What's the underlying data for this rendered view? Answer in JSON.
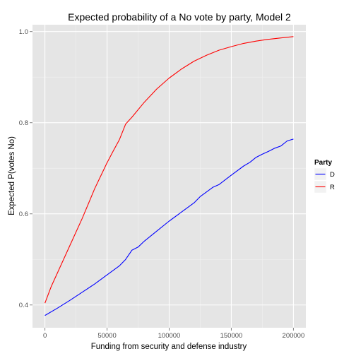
{
  "chart_data": {
    "type": "line",
    "title": "Expected probability of a No vote by party, Model 2",
    "xlabel": "Funding from security and defense industry",
    "ylabel": "Expected P(votes No)",
    "xlim": [
      -10000,
      210000
    ],
    "ylim": [
      0.35,
      1.015
    ],
    "x_ticks": [
      0,
      50000,
      100000,
      150000,
      200000
    ],
    "x_tick_labels": [
      "0",
      "50000",
      "100000",
      "150000",
      "200000"
    ],
    "y_ticks": [
      0.4,
      0.6,
      0.8,
      1.0
    ],
    "y_tick_labels": [
      "0.4",
      "0.6",
      "0.8",
      "1.0"
    ],
    "grid": true,
    "legend": {
      "title": "Party",
      "position": "right"
    },
    "series": [
      {
        "name": "D",
        "color": "#0000ff",
        "points": [
          [
            0,
            0.377
          ],
          [
            10000,
            0.393
          ],
          [
            20000,
            0.41
          ],
          [
            30000,
            0.428
          ],
          [
            40000,
            0.446
          ],
          [
            50000,
            0.466
          ],
          [
            60000,
            0.486
          ],
          [
            65000,
            0.5
          ],
          [
            70000,
            0.52
          ],
          [
            75000,
            0.527
          ],
          [
            80000,
            0.54
          ],
          [
            90000,
            0.562
          ],
          [
            100000,
            0.584
          ],
          [
            110000,
            0.604
          ],
          [
            120000,
            0.624
          ],
          [
            125000,
            0.638
          ],
          [
            130000,
            0.648
          ],
          [
            135000,
            0.658
          ],
          [
            140000,
            0.664
          ],
          [
            150000,
            0.685
          ],
          [
            160000,
            0.705
          ],
          [
            165000,
            0.713
          ],
          [
            170000,
            0.724
          ],
          [
            175000,
            0.731
          ],
          [
            180000,
            0.737
          ],
          [
            185000,
            0.744
          ],
          [
            190000,
            0.749
          ],
          [
            195000,
            0.76
          ],
          [
            200000,
            0.764
          ]
        ]
      },
      {
        "name": "R",
        "color": "#ff0000",
        "points": [
          [
            0,
            0.404
          ],
          [
            5000,
            0.44
          ],
          [
            10000,
            0.47
          ],
          [
            20000,
            0.53
          ],
          [
            30000,
            0.59
          ],
          [
            40000,
            0.655
          ],
          [
            50000,
            0.712
          ],
          [
            55000,
            0.738
          ],
          [
            60000,
            0.763
          ],
          [
            65000,
            0.797
          ],
          [
            70000,
            0.812
          ],
          [
            80000,
            0.845
          ],
          [
            90000,
            0.874
          ],
          [
            100000,
            0.898
          ],
          [
            110000,
            0.918
          ],
          [
            120000,
            0.935
          ],
          [
            130000,
            0.948
          ],
          [
            140000,
            0.959
          ],
          [
            150000,
            0.967
          ],
          [
            160000,
            0.974
          ],
          [
            170000,
            0.979
          ],
          [
            180000,
            0.983
          ],
          [
            190000,
            0.986
          ],
          [
            200000,
            0.989
          ]
        ]
      }
    ]
  }
}
